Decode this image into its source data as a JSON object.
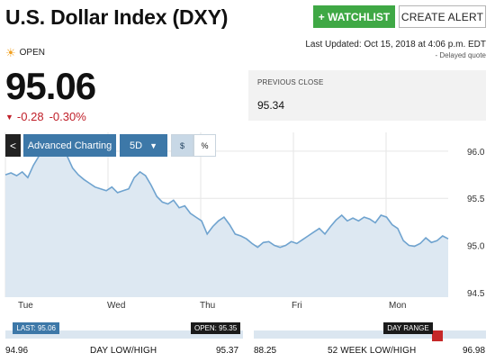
{
  "header": {
    "title": "U.S. Dollar Index (DXY)",
    "watchlist_label": "+ WATCHLIST",
    "alert_label": "CREATE ALERT"
  },
  "status": {
    "market_state": "OPEN",
    "last_updated": "Last Updated: Oct 15, 2018 at 4:06 p.m. EDT",
    "delayed_note": "- Delayed quote"
  },
  "quote": {
    "price": "95.06",
    "change": "-0.28",
    "change_pct": "-0.30%",
    "previous_close_label": "PREVIOUS CLOSE",
    "previous_close": "95.34"
  },
  "chart_controls": {
    "back_label": "<",
    "advanced_label": "Advanced Charting",
    "period_label": "5D",
    "dollar_label": "$",
    "percent_label": "%"
  },
  "chart_data": {
    "type": "area",
    "x_labels": [
      "Tue",
      "Wed",
      "Thu",
      "Fri",
      "Mon"
    ],
    "y_ticks": [
      94.5,
      95.0,
      95.5,
      96.0
    ],
    "ylim": [
      94.45,
      96.2
    ],
    "y": [
      95.75,
      95.77,
      95.74,
      95.78,
      95.72,
      95.85,
      95.95,
      95.98,
      96.05,
      96.12,
      96.05,
      95.95,
      95.82,
      95.75,
      95.7,
      95.66,
      95.62,
      95.6,
      95.58,
      95.62,
      95.56,
      95.58,
      95.6,
      95.72,
      95.78,
      95.74,
      95.64,
      95.52,
      95.46,
      95.44,
      95.48,
      95.4,
      95.42,
      95.34,
      95.3,
      95.26,
      95.12,
      95.2,
      95.26,
      95.3,
      95.22,
      95.12,
      95.1,
      95.07,
      95.02,
      94.98,
      95.03,
      95.04,
      95.0,
      94.98,
      95.0,
      95.04,
      95.02,
      95.06,
      95.1,
      95.14,
      95.18,
      95.12,
      95.2,
      95.27,
      95.32,
      95.26,
      95.29,
      95.26,
      95.3,
      95.28,
      95.24,
      95.32,
      95.3,
      95.22,
      95.18,
      95.05,
      95.0,
      94.99,
      95.02,
      95.08,
      95.03,
      95.05,
      95.1,
      95.07
    ]
  },
  "ranges": {
    "day": {
      "low": "94.96",
      "high": "95.37",
      "name": "DAY LOW/HIGH",
      "last_label": "LAST: 95.06",
      "open_label": "OPEN: 95.35",
      "last_value": 95.06,
      "open_value": 95.35,
      "low_value": 94.96,
      "high_value": 95.37
    },
    "week52": {
      "low": "88.25",
      "high": "96.98",
      "name": "52 WEEK LOW/HIGH",
      "pill_label": "DAY RANGE",
      "low_value": 88.25,
      "high_value": 96.98,
      "day_low_value": 94.96,
      "day_high_value": 95.37
    },
    "marker_color": "#c62828",
    "track_color": "#dbe6f0"
  }
}
